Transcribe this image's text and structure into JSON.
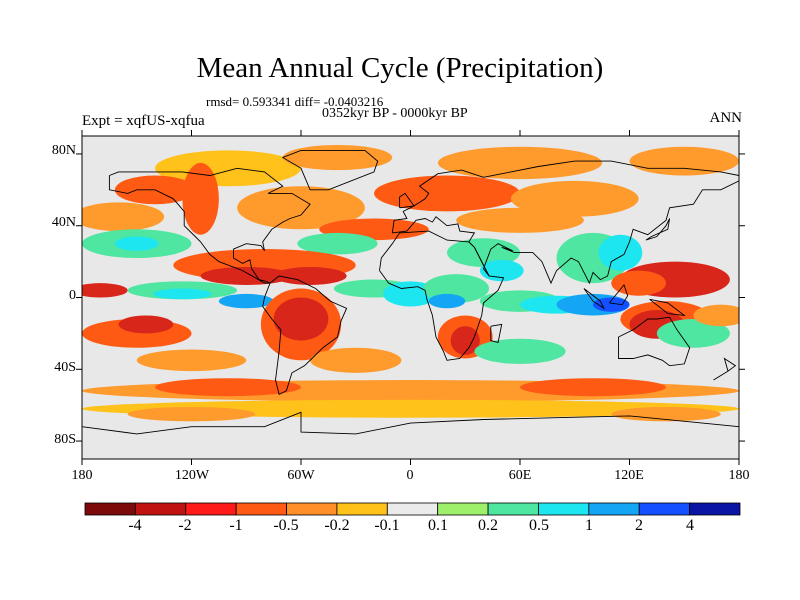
{
  "title": "Mean Annual Cycle (Precipitation)",
  "stats_text": "rmsd= 0.593341 diff= -0.0403216",
  "period": "0352kyr BP - 0000kyr BP",
  "experiment": "Expt = xqfUS-xqfua",
  "season": "ANN",
  "lat_labels": [
    "80N",
    "40N",
    "0",
    "40S",
    "80S"
  ],
  "lon_labels": [
    "180",
    "120W",
    "60W",
    "0",
    "60E",
    "120E",
    "180"
  ],
  "colorbar": {
    "colors": [
      "#7c0a0a",
      "#c11212",
      "#ff1a1a",
      "#ff5a14",
      "#ff8f28",
      "#ffc21a",
      "#ebebeb",
      "#9ef06a",
      "#4ee6a0",
      "#1ee6f0",
      "#14a5f5",
      "#1450ff",
      "#0a14a5"
    ],
    "labels": [
      "-4",
      "-2",
      "-1",
      "-0.5",
      "-0.2",
      "-0.1",
      "0.1",
      "0.2",
      "0.5",
      "1",
      "2",
      "4"
    ]
  },
  "map_colors": {
    "background": "#e8e8e8",
    "coast": "#000000",
    "strong_neg": "#d8261a",
    "neg": "#ff5a14",
    "weak_neg": "#ff9a2c",
    "slight_neg": "#ffc21a",
    "slight_pos": "#9ef06a",
    "pos": "#4ee6a0",
    "more_pos": "#1ee6f0",
    "strong_pos": "#14a5f5",
    "very_pos": "#1450ff"
  }
}
